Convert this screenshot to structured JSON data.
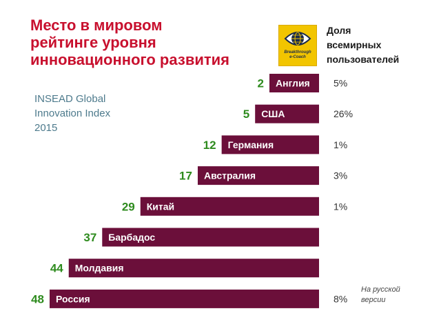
{
  "header": {
    "title_lines": [
      "Место в мировом",
      "рейтинге уровня",
      "инновационного развития"
    ],
    "source_lines": [
      "INSEAD Global",
      "Innovation Index",
      "2015"
    ],
    "share_header_lines": [
      "Доля",
      "всемирных",
      "пользователей"
    ],
    "logo_lines": [
      "Breakthrough",
      "e-Coach"
    ]
  },
  "note_lines": [
    "На русской",
    "версии"
  ],
  "colors": {
    "bar": "#6b0f3a",
    "rank": "#2e8b1e",
    "title": "#c8102e",
    "source": "#4d7a8c",
    "logo_bg": "#f2c500"
  },
  "chart_data": {
    "type": "bar",
    "orientation": "horizontal",
    "title": "Место в мировом рейтинге уровня инновационного развития",
    "categories": [
      "Англия",
      "США",
      "Германия",
      "Австралия",
      "Китай",
      "Барбадос",
      "Молдавия",
      "Россия"
    ],
    "series": [
      {
        "values": [
          2,
          5,
          12,
          17,
          29,
          37,
          44,
          48
        ]
      }
    ],
    "shares": [
      "5%",
      "26%",
      "1%",
      "3%",
      "1%",
      "",
      "",
      "8%"
    ],
    "xlim": [
      0,
      48
    ],
    "grid": false
  }
}
